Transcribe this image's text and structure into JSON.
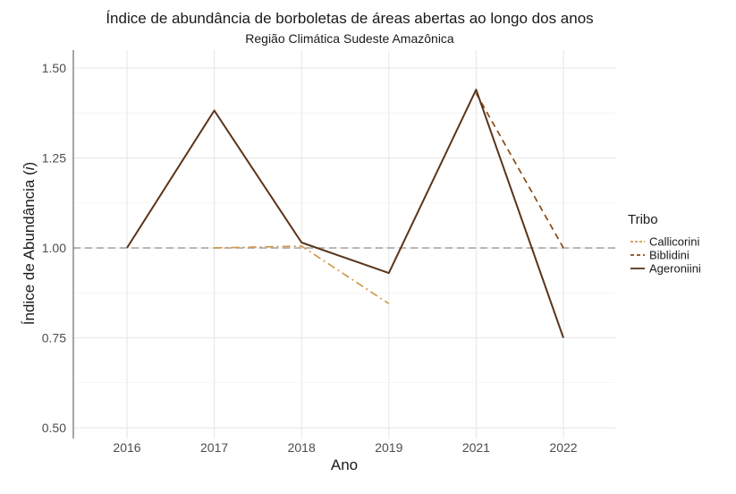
{
  "chart_data": {
    "type": "line",
    "title": "Índice de abundância de borboletas de áreas abertas ao longo dos anos",
    "subtitle": "Região Climática Sudeste Amazônica",
    "xlabel": "Ano",
    "ylabel_prefix": "Índice de Abundância (",
    "ylabel_italic": "i",
    "ylabel_suffix": ")",
    "categories": [
      "2016",
      "2017",
      "2018",
      "2019",
      "2021",
      "2022"
    ],
    "ylim": [
      0.47,
      1.55
    ],
    "yticks": [
      0.5,
      0.75,
      1.0,
      1.25,
      1.5
    ],
    "ytick_labels": [
      "0.50",
      "0.75",
      "1.00",
      "1.25",
      "1.50"
    ],
    "reference_line": 1.0,
    "grid": true,
    "legend": {
      "title": "Tribo",
      "placement": "right",
      "entries": [
        "Callicorini",
        "Biblidini",
        "Ageroniini"
      ]
    },
    "series": [
      {
        "name": "Callicorini",
        "color": "#d09a4e",
        "dash": "dotdash",
        "points": [
          [
            "2017",
            1.0
          ],
          [
            "2018",
            1.005
          ],
          [
            "2019",
            0.845
          ]
        ]
      },
      {
        "name": "Biblidini",
        "color": "#8c4a12",
        "dash": "dashed",
        "points": [
          [
            "2021",
            1.43
          ],
          [
            "2022",
            1.0
          ]
        ]
      },
      {
        "name": "Ageroniini",
        "color": "#5a341a",
        "dash": "solid",
        "points": [
          [
            "2016",
            1.0
          ],
          [
            "2017",
            1.382
          ],
          [
            "2018",
            1.015
          ],
          [
            "2019",
            0.93
          ],
          [
            "2021",
            1.44
          ],
          [
            "2022",
            0.75
          ]
        ]
      }
    ]
  }
}
